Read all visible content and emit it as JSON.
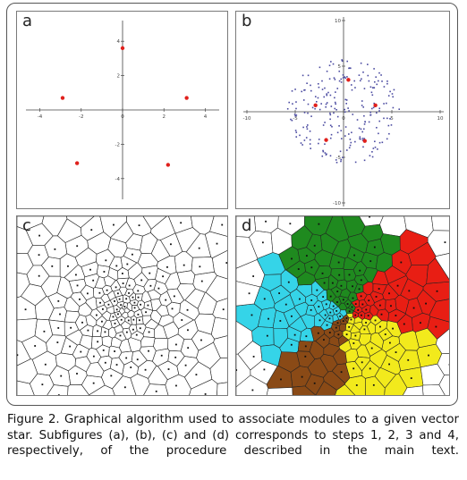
{
  "figure": {
    "caption": "Figure 2. Graphical algorithm used to associate modules to a given vector star. Subfigures (a), (b), (c) and (d) corresponds to steps 1, 2, 3 and 4, respectively, of the procedure described in the main text."
  },
  "panels": {
    "a": {
      "label": "a",
      "x_ticks": [
        "-4",
        "-2",
        "0",
        "2",
        "4"
      ],
      "y_ticks": [
        "4",
        "2",
        "-2",
        "-4"
      ]
    },
    "b": {
      "label": "b",
      "x_ticks": [
        "-10",
        "-5",
        "0",
        "5",
        "10"
      ],
      "y_ticks": [
        "10",
        "5",
        "-5",
        "-10"
      ]
    },
    "c": {
      "label": "c"
    },
    "d": {
      "label": "d"
    }
  },
  "chart_data": [
    {
      "type": "scatter",
      "panel": "a",
      "title": "",
      "xlabel": "",
      "ylabel": "",
      "xlim": [
        -4.5,
        4.5
      ],
      "ylim": [
        -5,
        5
      ],
      "series": [
        {
          "color": "#e0201c",
          "x": [
            0,
            3.1,
            -2.9,
            -2.2,
            2.2
          ],
          "y": [
            3.6,
            0.7,
            0.7,
            -3.1,
            -3.2
          ]
        }
      ]
    },
    {
      "type": "scatter",
      "panel": "b",
      "title": "",
      "xlabel": "",
      "ylabel": "",
      "xlim": [
        -10,
        10
      ],
      "ylim": [
        -10,
        10
      ],
      "series": [
        {
          "color": "#4a4aa0",
          "note_marker": "small-blue",
          "x": [],
          "y": []
        },
        {
          "color": "#e0201c",
          "x": [
            0.5,
            3.3,
            -2.9,
            -1.8,
            2.2
          ],
          "y": [
            3.5,
            0.7,
            0.7,
            -3.1,
            -3.2
          ]
        }
      ]
    }
  ]
}
